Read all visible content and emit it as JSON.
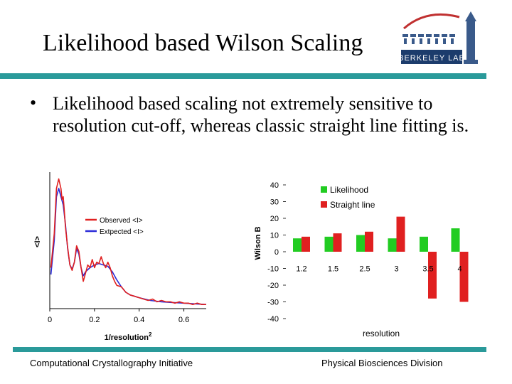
{
  "slide": {
    "title": "Likelihood based Wilson Scaling",
    "bullet": "Likelihood based scaling not extremely sensitive to resolution cut-off, whereas classic straight line fitting is."
  },
  "logo": {
    "text": "BERKELEY LAB"
  },
  "footer": {
    "left": "Computational Crystallography Initiative",
    "right": "Physical Biosciences Division"
  },
  "colors": {
    "teal": "#2a9a9a",
    "red": "#e02020",
    "green": "#22cc22",
    "blue": "#2a2ad8"
  },
  "chart_data": [
    {
      "type": "line",
      "xlabel": "1/resolution",
      "xlabel_superscript": "2",
      "ylabel": "<I>",
      "xticks": [
        0,
        0.2,
        0.4,
        0.6
      ],
      "xtick_labels": [
        "0",
        "0.2",
        "0.4",
        "0.6"
      ],
      "xlim": [
        0,
        0.7
      ],
      "ylim": [
        0,
        1
      ],
      "legend_position": "top-right",
      "series": [
        {
          "name": "Observed <I>",
          "color": "#e02020",
          "x": [
            0.005,
            0.02,
            0.03,
            0.04,
            0.05,
            0.055,
            0.06,
            0.065,
            0.07,
            0.08,
            0.09,
            0.1,
            0.11,
            0.12,
            0.13,
            0.14,
            0.15,
            0.16,
            0.17,
            0.18,
            0.19,
            0.2,
            0.21,
            0.22,
            0.23,
            0.24,
            0.25,
            0.26,
            0.27,
            0.28,
            0.29,
            0.3,
            0.32,
            0.34,
            0.36,
            0.38,
            0.4,
            0.42,
            0.44,
            0.46,
            0.48,
            0.5,
            0.52,
            0.54,
            0.56,
            0.58,
            0.6,
            0.62,
            0.64,
            0.66,
            0.68,
            0.7
          ],
          "y": [
            0.3,
            0.55,
            0.88,
            0.95,
            0.88,
            0.8,
            0.82,
            0.72,
            0.6,
            0.45,
            0.32,
            0.28,
            0.34,
            0.46,
            0.42,
            0.3,
            0.2,
            0.26,
            0.32,
            0.3,
            0.36,
            0.3,
            0.34,
            0.33,
            0.38,
            0.33,
            0.3,
            0.34,
            0.3,
            0.24,
            0.2,
            0.17,
            0.16,
            0.12,
            0.1,
            0.09,
            0.08,
            0.07,
            0.06,
            0.07,
            0.05,
            0.06,
            0.05,
            0.05,
            0.04,
            0.05,
            0.04,
            0.04,
            0.03,
            0.04,
            0.03,
            0.03
          ]
        },
        {
          "name": "Extpected <I>",
          "color": "#2a2ad8",
          "x": [
            0.005,
            0.02,
            0.03,
            0.04,
            0.05,
            0.06,
            0.07,
            0.08,
            0.09,
            0.1,
            0.11,
            0.12,
            0.13,
            0.14,
            0.15,
            0.16,
            0.18,
            0.2,
            0.22,
            0.24,
            0.26,
            0.28,
            0.3,
            0.32,
            0.34,
            0.36,
            0.38,
            0.4,
            0.45,
            0.5,
            0.55,
            0.6,
            0.65,
            0.7
          ],
          "y": [
            0.25,
            0.5,
            0.82,
            0.88,
            0.82,
            0.76,
            0.62,
            0.44,
            0.32,
            0.29,
            0.34,
            0.44,
            0.4,
            0.3,
            0.24,
            0.27,
            0.3,
            0.32,
            0.33,
            0.32,
            0.31,
            0.27,
            0.21,
            0.16,
            0.12,
            0.1,
            0.09,
            0.08,
            0.06,
            0.05,
            0.045,
            0.04,
            0.035,
            0.03
          ]
        }
      ]
    },
    {
      "type": "bar",
      "xlabel": "resolution",
      "ylabel": "Wilson B",
      "categories": [
        "1.2",
        "1.5",
        "2.5",
        "3",
        "3.5",
        "4"
      ],
      "ylim": [
        -40,
        40
      ],
      "yticks": [
        40,
        30,
        20,
        10,
        0,
        -10,
        -20,
        -30,
        -40
      ],
      "ytick_labels": [
        "40",
        "30",
        "20",
        "10",
        "0",
        "-10",
        "-20",
        "-30",
        "-40"
      ],
      "legend_position": "top-right",
      "series": [
        {
          "name": "Likelihood",
          "color": "#22cc22",
          "values": [
            8,
            9,
            10,
            8,
            9,
            14
          ]
        },
        {
          "name": "Straight line",
          "color": "#e02020",
          "values": [
            9,
            11,
            12,
            21,
            -28,
            -30
          ]
        }
      ]
    }
  ]
}
